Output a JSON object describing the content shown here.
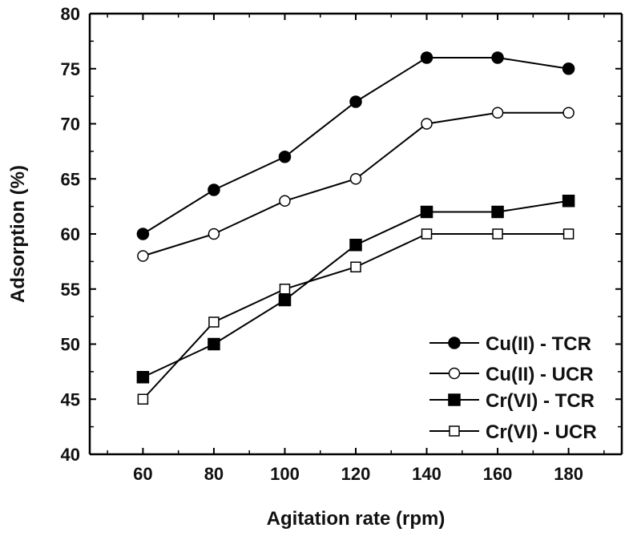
{
  "chart_data": {
    "type": "line",
    "title": "",
    "xlabel": "Agitation rate (rpm)",
    "ylabel": "Adsorption (%)",
    "x": [
      60,
      80,
      100,
      120,
      140,
      160,
      180
    ],
    "xlim": [
      45,
      195
    ],
    "ylim": [
      40,
      80
    ],
    "x_ticks": [
      "60",
      "80",
      "100",
      "120",
      "140",
      "160",
      "180"
    ],
    "y_ticks": [
      "40",
      "45",
      "50",
      "55",
      "60",
      "65",
      "70",
      "75",
      "80"
    ],
    "legend_position": "bottom-right",
    "grid": false,
    "series": [
      {
        "name": "Cu(II) - TCR",
        "marker": "filled-circle",
        "color": "#000000",
        "values": [
          60,
          64,
          67,
          72,
          76,
          76,
          75
        ]
      },
      {
        "name": "Cu(II) - UCR",
        "marker": "open-circle",
        "color": "#000000",
        "values": [
          58,
          60,
          63,
          65,
          70,
          71,
          71
        ]
      },
      {
        "name": "Cr(VI) - TCR",
        "marker": "filled-square",
        "color": "#000000",
        "values": [
          47,
          50,
          54,
          59,
          62,
          62,
          63
        ]
      },
      {
        "name": "Cr(VI) - UCR",
        "marker": "open-square",
        "color": "#000000",
        "values": [
          45,
          52,
          55,
          57,
          60,
          60,
          60
        ]
      }
    ]
  }
}
